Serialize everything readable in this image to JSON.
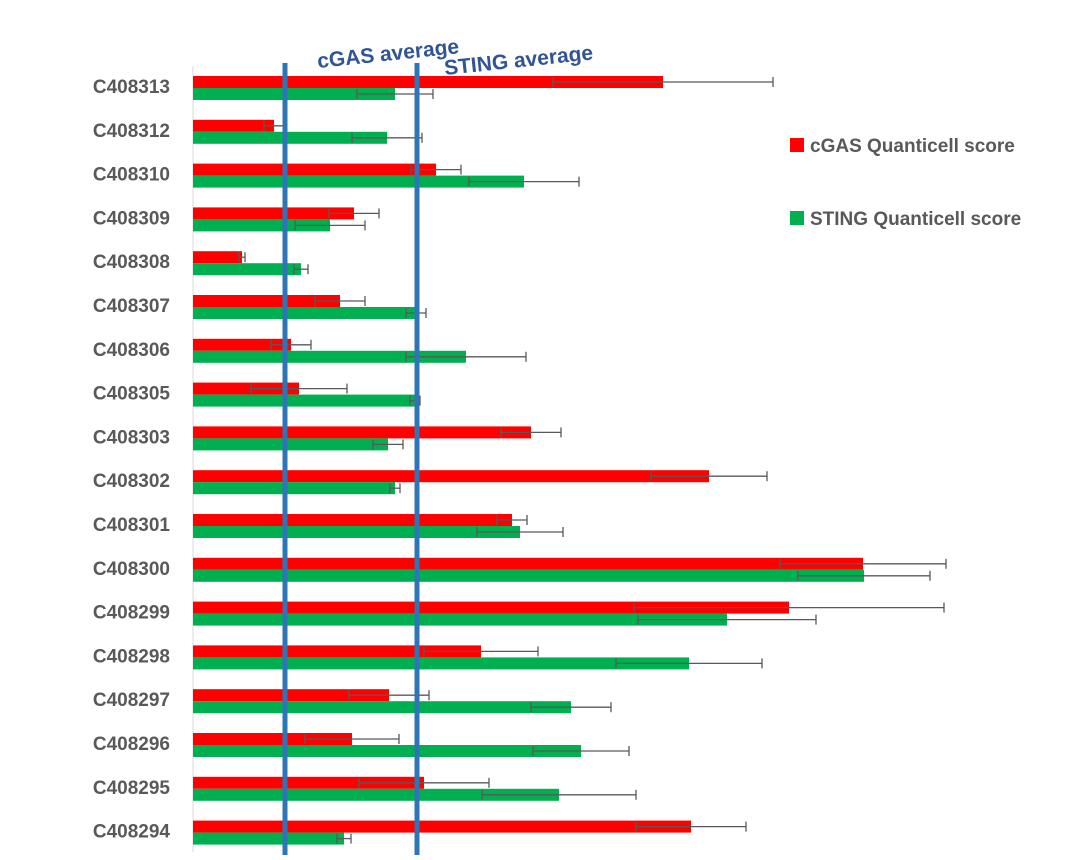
{
  "chart_data": {
    "type": "bar",
    "orientation": "horizontal",
    "categories": [
      "C408313",
      "C408312",
      "C408310",
      "C408309",
      "C408308",
      "C408307",
      "C408306",
      "C408305",
      "C408303",
      "C408302",
      "C408301",
      "C408300",
      "C408299",
      "C408298",
      "C408297",
      "C408296",
      "C408295",
      "C408294"
    ],
    "series": [
      {
        "name": "cGAS Quanticell score",
        "color": "#ff0000",
        "values": [
          470,
          81,
          243,
          161,
          49,
          147,
          98,
          106,
          338,
          516,
          319,
          670,
          596,
          288,
          196,
          159,
          231,
          498
        ],
        "error": [
          110,
          10,
          25,
          25,
          3,
          25,
          20,
          48,
          30,
          58,
          15,
          83,
          155,
          57,
          40,
          47,
          65,
          55
        ]
      },
      {
        "name": "STING Quanticell score",
        "color": "#00b050",
        "values": [
          202,
          194,
          331,
          137,
          108,
          223,
          273,
          222,
          195,
          202,
          327,
          671,
          534,
          496,
          378,
          388,
          366,
          151
        ],
        "error": [
          38,
          35,
          55,
          35,
          7,
          10,
          60,
          5,
          15,
          5,
          43,
          66,
          89,
          73,
          40,
          48,
          77,
          7
        ]
      }
    ],
    "averages": [
      {
        "label": "cGAS average",
        "value": 92
      },
      {
        "label": "STING average",
        "value": 224
      }
    ],
    "xlim": [
      0,
      770
    ],
    "grid": false,
    "legend": "right",
    "title": "",
    "xlabel": "",
    "ylabel": ""
  }
}
